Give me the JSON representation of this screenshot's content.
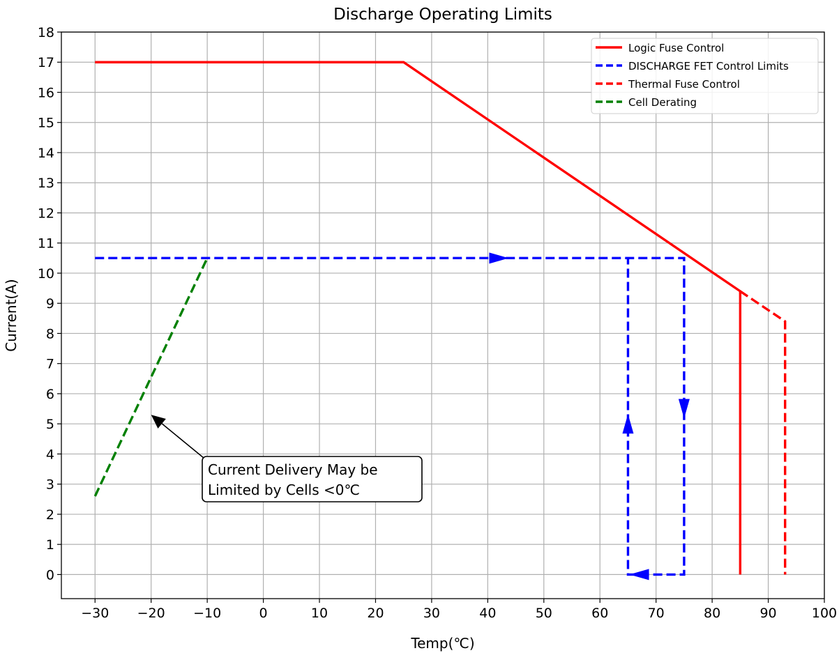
{
  "chart_data": {
    "type": "line",
    "title": "Discharge Operating Limits",
    "xlabel": "Temp(℃)",
    "ylabel": "Current(A)",
    "xlim": [
      -36,
      100
    ],
    "ylim": [
      -0.8,
      18
    ],
    "xticks": [
      -30,
      -20,
      -10,
      0,
      10,
      20,
      30,
      40,
      50,
      60,
      70,
      80,
      90,
      100
    ],
    "xtick_labels": [
      "−30",
      "−20",
      "−10",
      "0",
      "10",
      "20",
      "30",
      "40",
      "50",
      "60",
      "70",
      "80",
      "90",
      "100"
    ],
    "yticks": [
      0,
      1,
      2,
      3,
      4,
      5,
      6,
      7,
      8,
      9,
      10,
      11,
      12,
      13,
      14,
      15,
      16,
      17,
      18
    ],
    "ytick_labels": [
      "0",
      "1",
      "2",
      "3",
      "4",
      "5",
      "6",
      "7",
      "8",
      "9",
      "10",
      "11",
      "12",
      "13",
      "14",
      "15",
      "16",
      "17",
      "18"
    ],
    "grid": true,
    "legend_position": "top-right",
    "series": [
      {
        "name": "Logic Fuse Control",
        "color": "#ff0000",
        "style": "solid",
        "x": [
          -30,
          25,
          85,
          85
        ],
        "y": [
          17,
          17,
          9.4,
          0
        ]
      },
      {
        "name": "DISCHARGE FET Control Limits",
        "color": "#0000ff",
        "style": "dashed",
        "x": [
          -30,
          75,
          75,
          65,
          65
        ],
        "y": [
          10.5,
          10.5,
          0,
          0,
          10.5
        ]
      },
      {
        "name": "Thermal Fuse Control",
        "color": "#ff0000",
        "style": "dashed",
        "x": [
          85,
          93,
          93
        ],
        "y": [
          9.4,
          8.4,
          0
        ]
      },
      {
        "name": "Cell Derating",
        "color": "#008000",
        "style": "dashed",
        "x": [
          -30,
          -10
        ],
        "y": [
          2.6,
          10.5
        ]
      }
    ],
    "direction_arrows": [
      {
        "x": 42,
        "y": 10.5,
        "direction": "right",
        "color": "#0000ff"
      },
      {
        "x": 75,
        "y": 5.5,
        "direction": "down",
        "color": "#0000ff"
      },
      {
        "x": 67,
        "y": 0,
        "direction": "left",
        "color": "#0000ff"
      },
      {
        "x": 65,
        "y": 5,
        "direction": "up",
        "color": "#0000ff"
      }
    ],
    "annotation": {
      "lines": [
        "Current Delivery May be",
        "Limited by Cells <0℃"
      ],
      "arrow_to": {
        "x": -20,
        "y": 5.3
      }
    }
  }
}
